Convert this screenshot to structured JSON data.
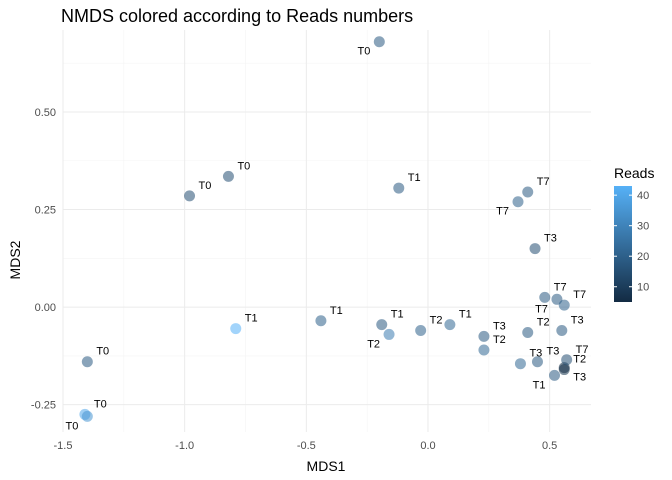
{
  "chart_data": {
    "type": "scatter",
    "title": "NMDS colored according to Reads numbers",
    "xlabel": "MDS1",
    "ylabel": "MDS2",
    "xlim": [
      -1.5,
      0.67
    ],
    "ylim": [
      -0.32,
      0.71
    ],
    "x_ticks": [
      -1.5,
      -1.0,
      -0.5,
      0.0,
      0.5
    ],
    "x_tick_labels": [
      "-1.5",
      "-1.0",
      "-0.5",
      "0.0",
      "0.5"
    ],
    "y_ticks": [
      -0.25,
      0.0,
      0.25,
      0.5
    ],
    "y_tick_labels": [
      "-0.25",
      "0.00",
      "0.25",
      "0.50"
    ],
    "grid": true,
    "legend": {
      "title": "Reads",
      "position": "right",
      "min": 5,
      "max": 43,
      "ticks": [
        10,
        20,
        30,
        40
      ],
      "tick_labels": [
        "10",
        "20",
        "30",
        "40"
      ],
      "color_low": "#132b43",
      "color_high": "#56b1f7"
    },
    "points": [
      {
        "x": -0.2,
        "y": 0.68,
        "label": "T0",
        "reads": 18
      },
      {
        "x": -0.82,
        "y": 0.335,
        "label": "T0",
        "reads": 15
      },
      {
        "x": -0.98,
        "y": 0.285,
        "label": "T0",
        "reads": 15
      },
      {
        "x": -0.12,
        "y": 0.305,
        "label": "T1",
        "reads": 18
      },
      {
        "x": 0.41,
        "y": 0.295,
        "label": "T7",
        "reads": 18
      },
      {
        "x": 0.37,
        "y": 0.27,
        "label": "T7",
        "reads": 20
      },
      {
        "x": 0.44,
        "y": 0.15,
        "label": "T3",
        "reads": 15
      },
      {
        "x": 0.48,
        "y": 0.025,
        "label": "T7",
        "reads": 18
      },
      {
        "x": 0.53,
        "y": 0.02,
        "label": "T7",
        "reads": 18
      },
      {
        "x": 0.56,
        "y": 0.005,
        "label": "T7",
        "reads": 20
      },
      {
        "x": -0.79,
        "y": -0.055,
        "label": "T1",
        "reads": 43
      },
      {
        "x": -0.44,
        "y": -0.035,
        "label": "T1",
        "reads": 20
      },
      {
        "x": -0.19,
        "y": -0.045,
        "label": "T1",
        "reads": 18
      },
      {
        "x": -0.16,
        "y": -0.07,
        "label": "T2",
        "reads": 28
      },
      {
        "x": -0.03,
        "y": -0.06,
        "label": "T2",
        "reads": 20
      },
      {
        "x": 0.09,
        "y": -0.045,
        "label": "T1",
        "reads": 22
      },
      {
        "x": 0.23,
        "y": -0.075,
        "label": "T3",
        "reads": 18
      },
      {
        "x": 0.41,
        "y": -0.065,
        "label": "T2",
        "reads": 18
      },
      {
        "x": 0.55,
        "y": -0.06,
        "label": "T3",
        "reads": 18
      },
      {
        "x": 0.23,
        "y": -0.11,
        "label": "T2",
        "reads": 22
      },
      {
        "x": 0.38,
        "y": -0.145,
        "label": "T3",
        "reads": 22
      },
      {
        "x": 0.45,
        "y": -0.14,
        "label": "T3",
        "reads": 18
      },
      {
        "x": 0.52,
        "y": -0.175,
        "label": "T1",
        "reads": 18
      },
      {
        "x": 0.56,
        "y": -0.16,
        "label": "T2",
        "reads": 8
      },
      {
        "x": 0.56,
        "y": -0.155,
        "label": "T3",
        "reads": 5
      },
      {
        "x": 0.57,
        "y": -0.135,
        "label": "T7",
        "reads": 15
      },
      {
        "x": -1.4,
        "y": -0.14,
        "label": "T0",
        "reads": 18
      },
      {
        "x": -1.41,
        "y": -0.275,
        "label": "T0",
        "reads": 40
      },
      {
        "x": -1.4,
        "y": -0.28,
        "label": "T0",
        "reads": 35
      }
    ]
  }
}
